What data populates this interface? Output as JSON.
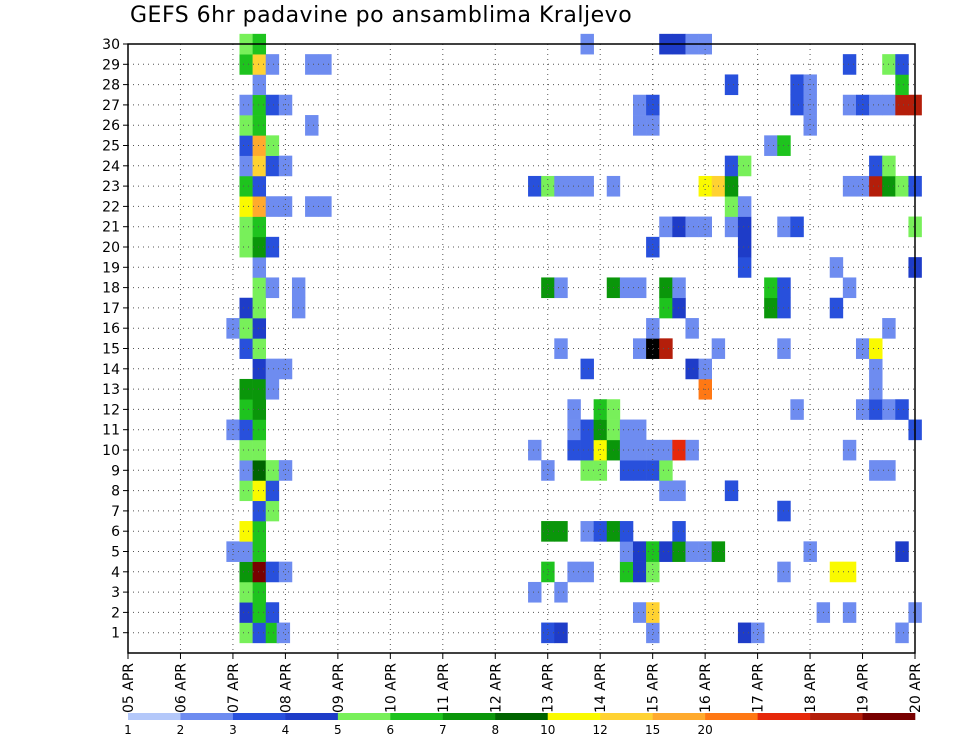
{
  "chart_data": {
    "type": "heatmap",
    "title": "GEFS 6hr padavine po ansamblima Kraljevo",
    "xlabel": "",
    "ylabel": "",
    "x_tick_labels": [
      "05 APR",
      "06 APR",
      "07 APR",
      "08 APR",
      "09 APR",
      "10 APR",
      "11 APR",
      "12 APR",
      "13 APR",
      "14 APR",
      "15 APR",
      "16 APR",
      "17 APR",
      "18 APR",
      "19 APR",
      "20 APR"
    ],
    "y_tick_labels": [
      "1",
      "2",
      "3",
      "4",
      "5",
      "6",
      "7",
      "8",
      "9",
      "10",
      "11",
      "12",
      "13",
      "14",
      "15",
      "16",
      "17",
      "18",
      "19",
      "20",
      "21",
      "22",
      "23",
      "24",
      "25",
      "26",
      "27",
      "28",
      "29",
      "30"
    ],
    "xlim": [
      "05 APR 00Z",
      "20 APR 00Z"
    ],
    "ylim": [
      0,
      30
    ],
    "x_step_hours": 6,
    "grid": true,
    "colorbar": {
      "colors": [
        "#b4c8fa",
        "#6e8cf0",
        "#2850dc",
        "#1e3cc8",
        "#78f05a",
        "#1ec31e",
        "#0a960a",
        "#006400",
        "#fafa00",
        "#ffd232",
        "#ffaa2d",
        "#ff7814",
        "#e6280a",
        "#b41e0a",
        "#780000"
      ],
      "labels": [
        "1",
        "2",
        "3",
        "4",
        "5",
        "6",
        "7",
        "8",
        "10",
        "12",
        "15",
        "20"
      ],
      "label_bins": [
        0,
        1,
        2,
        3,
        4,
        5,
        6,
        7,
        8,
        9,
        10,
        11
      ]
    },
    "cells": [
      [
        1,
        "07 APR 06Z",
        4
      ],
      [
        1,
        "07 APR 12Z",
        2
      ],
      [
        1,
        "07 APR 18Z",
        5
      ],
      [
        1,
        "07 APR 23Z",
        1
      ],
      [
        1,
        "13 APR 00Z",
        2
      ],
      [
        1,
        "13 APR 06Z",
        3
      ],
      [
        1,
        "15 APR 00Z",
        1
      ],
      [
        1,
        "16 APR 18Z",
        3
      ],
      [
        1,
        "17 APR 00Z",
        1
      ],
      [
        1,
        "19 APR 18Z",
        1
      ],
      [
        2,
        "07 APR 06Z",
        3
      ],
      [
        2,
        "07 APR 12Z",
        5
      ],
      [
        2,
        "07 APR 18Z",
        2
      ],
      [
        2,
        "14 APR 18Z",
        1
      ],
      [
        2,
        "15 APR 00Z",
        9
      ],
      [
        2,
        "18 APR 06Z",
        1
      ],
      [
        2,
        "18 APR 18Z",
        1
      ],
      [
        2,
        "20 APR 00Z",
        1
      ],
      [
        3,
        "07 APR 06Z",
        4
      ],
      [
        3,
        "07 APR 12Z",
        5
      ],
      [
        3,
        "12 APR 18Z",
        1
      ],
      [
        3,
        "13 APR 06Z",
        1
      ],
      [
        4,
        "07 APR 06Z",
        6
      ],
      [
        4,
        "07 APR 12Z",
        14
      ],
      [
        4,
        "07 APR 18Z",
        2
      ],
      [
        4,
        "08 APR 00Z",
        1
      ],
      [
        4,
        "13 APR 00Z",
        5
      ],
      [
        4,
        "13 APR 12Z",
        1
      ],
      [
        4,
        "13 APR 18Z",
        1
      ],
      [
        4,
        "14 APR 12Z",
        5
      ],
      [
        4,
        "14 APR 18Z",
        3
      ],
      [
        4,
        "15 APR 00Z",
        4
      ],
      [
        4,
        "17 APR 12Z",
        1
      ],
      [
        4,
        "18 APR 12Z",
        8
      ],
      [
        4,
        "18 APR 18Z",
        8
      ],
      [
        5,
        "07 APR 00Z",
        1
      ],
      [
        5,
        "07 APR 06Z",
        1
      ],
      [
        5,
        "07 APR 12Z",
        5
      ],
      [
        5,
        "14 APR 12Z",
        1
      ],
      [
        5,
        "14 APR 18Z",
        3
      ],
      [
        5,
        "15 APR 00Z",
        5
      ],
      [
        5,
        "15 APR 06Z",
        3
      ],
      [
        5,
        "15 APR 12Z",
        6
      ],
      [
        5,
        "15 APR 18Z",
        1
      ],
      [
        5,
        "16 APR 00Z",
        1
      ],
      [
        5,
        "16 APR 06Z",
        6
      ],
      [
        5,
        "18 APR 00Z",
        1
      ],
      [
        5,
        "19 APR 18Z",
        3
      ],
      [
        6,
        "07 APR 06Z",
        8
      ],
      [
        6,
        "07 APR 12Z",
        5
      ],
      [
        6,
        "13 APR 00Z",
        6
      ],
      [
        6,
        "13 APR 06Z",
        6
      ],
      [
        6,
        "13 APR 18Z",
        1
      ],
      [
        6,
        "14 APR 00Z",
        2
      ],
      [
        6,
        "14 APR 06Z",
        6
      ],
      [
        6,
        "14 APR 12Z",
        2
      ],
      [
        6,
        "15 APR 12Z",
        2
      ],
      [
        7,
        "07 APR 12Z",
        2
      ],
      [
        7,
        "07 APR 18Z",
        4
      ],
      [
        7,
        "17 APR 12Z",
        2
      ],
      [
        8,
        "07 APR 06Z",
        4
      ],
      [
        8,
        "07 APR 12Z",
        8
      ],
      [
        8,
        "07 APR 18Z",
        2
      ],
      [
        8,
        "15 APR 06Z",
        1
      ],
      [
        8,
        "15 APR 12Z",
        1
      ],
      [
        8,
        "16 APR 12Z",
        2
      ],
      [
        9,
        "07 APR 06Z",
        1
      ],
      [
        9,
        "07 APR 12Z",
        7
      ],
      [
        9,
        "07 APR 18Z",
        4
      ],
      [
        9,
        "08 APR 00Z",
        1
      ],
      [
        9,
        "13 APR 00Z",
        1
      ],
      [
        9,
        "13 APR 18Z",
        4
      ],
      [
        9,
        "14 APR 00Z",
        4
      ],
      [
        9,
        "14 APR 12Z",
        2
      ],
      [
        9,
        "14 APR 18Z",
        2
      ],
      [
        9,
        "15 APR 00Z",
        2
      ],
      [
        9,
        "15 APR 06Z",
        4
      ],
      [
        9,
        "19 APR 06Z",
        1
      ],
      [
        9,
        "19 APR 12Z",
        1
      ],
      [
        10,
        "07 APR 06Z",
        4
      ],
      [
        10,
        "07 APR 12Z",
        4
      ],
      [
        10,
        "12 APR 18Z",
        1
      ],
      [
        10,
        "13 APR 12Z",
        2
      ],
      [
        10,
        "13 APR 18Z",
        2
      ],
      [
        10,
        "14 APR 00Z",
        8
      ],
      [
        10,
        "14 APR 06Z",
        6
      ],
      [
        10,
        "14 APR 12Z",
        1
      ],
      [
        10,
        "14 APR 18Z",
        1
      ],
      [
        10,
        "15 APR 00Z",
        1
      ],
      [
        10,
        "15 APR 06Z",
        1
      ],
      [
        10,
        "15 APR 12Z",
        12
      ],
      [
        10,
        "15 APR 18Z",
        1
      ],
      [
        10,
        "18 APR 18Z",
        1
      ],
      [
        11,
        "07 APR 00Z",
        1
      ],
      [
        11,
        "07 APR 06Z",
        2
      ],
      [
        11,
        "07 APR 12Z",
        5
      ],
      [
        11,
        "13 APR 12Z",
        1
      ],
      [
        11,
        "13 APR 18Z",
        2
      ],
      [
        11,
        "14 APR 00Z",
        6
      ],
      [
        11,
        "14 APR 06Z",
        4
      ],
      [
        11,
        "14 APR 12Z",
        1
      ],
      [
        11,
        "14 APR 18Z",
        1
      ],
      [
        11,
        "20 APR 00Z",
        2
      ],
      [
        12,
        "07 APR 06Z",
        5
      ],
      [
        12,
        "07 APR 12Z",
        6
      ],
      [
        12,
        "13 APR 12Z",
        1
      ],
      [
        12,
        "14 APR 00Z",
        5
      ],
      [
        12,
        "14 APR 06Z",
        4
      ],
      [
        12,
        "17 APR 18Z",
        1
      ],
      [
        12,
        "19 APR 00Z",
        1
      ],
      [
        12,
        "19 APR 06Z",
        2
      ],
      [
        12,
        "19 APR 12Z",
        1
      ],
      [
        12,
        "19 APR 18Z",
        2
      ],
      [
        13,
        "07 APR 06Z",
        6
      ],
      [
        13,
        "07 APR 12Z",
        6
      ],
      [
        13,
        "07 APR 18Z",
        1
      ],
      [
        13,
        "16 APR 00Z",
        11
      ],
      [
        13,
        "19 APR 06Z",
        1
      ],
      [
        14,
        "07 APR 12Z",
        3
      ],
      [
        14,
        "07 APR 18Z",
        1
      ],
      [
        14,
        "08 APR 00Z",
        1
      ],
      [
        14,
        "13 APR 18Z",
        2
      ],
      [
        14,
        "15 APR 18Z",
        3
      ],
      [
        14,
        "16 APR 00Z",
        1
      ],
      [
        14,
        "19 APR 06Z",
        1
      ],
      [
        15,
        "07 APR 06Z",
        2
      ],
      [
        15,
        "07 APR 12Z",
        4
      ],
      [
        15,
        "13 APR 06Z",
        1
      ],
      [
        15,
        "14 APR 18Z",
        1
      ],
      [
        15,
        "15 APR 00Z",
        15
      ],
      [
        15,
        "15 APR 06Z",
        13
      ],
      [
        15,
        "16 APR 06Z",
        1
      ],
      [
        15,
        "17 APR 12Z",
        1
      ],
      [
        15,
        "19 APR 00Z",
        1
      ],
      [
        15,
        "19 APR 06Z",
        8
      ],
      [
        16,
        "07 APR 00Z",
        1
      ],
      [
        16,
        "07 APR 06Z",
        4
      ],
      [
        16,
        "07 APR 12Z",
        3
      ],
      [
        16,
        "15 APR 00Z",
        1
      ],
      [
        16,
        "15 APR 18Z",
        1
      ],
      [
        16,
        "19 APR 12Z",
        1
      ],
      [
        17,
        "07 APR 06Z",
        3
      ],
      [
        17,
        "07 APR 12Z",
        4
      ],
      [
        17,
        "08 APR 06Z",
        1
      ],
      [
        17,
        "15 APR 06Z",
        5
      ],
      [
        17,
        "15 APR 12Z",
        3
      ],
      [
        17,
        "17 APR 06Z",
        6
      ],
      [
        17,
        "17 APR 12Z",
        2
      ],
      [
        17,
        "18 APR 12Z",
        2
      ],
      [
        18,
        "07 APR 12Z",
        4
      ],
      [
        18,
        "07 APR 18Z",
        1
      ],
      [
        18,
        "08 APR 06Z",
        1
      ],
      [
        18,
        "13 APR 00Z",
        6
      ],
      [
        18,
        "13 APR 06Z",
        1
      ],
      [
        18,
        "14 APR 06Z",
        6
      ],
      [
        18,
        "14 APR 12Z",
        1
      ],
      [
        18,
        "14 APR 18Z",
        1
      ],
      [
        18,
        "15 APR 06Z",
        6
      ],
      [
        18,
        "15 APR 12Z",
        1
      ],
      [
        18,
        "17 APR 06Z",
        5
      ],
      [
        18,
        "17 APR 12Z",
        2
      ],
      [
        18,
        "18 APR 18Z",
        1
      ],
      [
        19,
        "07 APR 12Z",
        1
      ],
      [
        19,
        "16 APR 18Z",
        2
      ],
      [
        19,
        "18 APR 12Z",
        1
      ],
      [
        19,
        "20 APR 00Z",
        3
      ],
      [
        20,
        "07 APR 06Z",
        4
      ],
      [
        20,
        "07 APR 12Z",
        6
      ],
      [
        20,
        "07 APR 18Z",
        2
      ],
      [
        20,
        "15 APR 00Z",
        2
      ],
      [
        20,
        "16 APR 18Z",
        3
      ],
      [
        21,
        "07 APR 06Z",
        4
      ],
      [
        21,
        "07 APR 12Z",
        5
      ],
      [
        21,
        "15 APR 06Z",
        1
      ],
      [
        21,
        "15 APR 12Z",
        3
      ],
      [
        21,
        "15 APR 18Z",
        1
      ],
      [
        21,
        "16 APR 00Z",
        1
      ],
      [
        21,
        "16 APR 12Z",
        1
      ],
      [
        21,
        "16 APR 18Z",
        3
      ],
      [
        21,
        "17 APR 12Z",
        1
      ],
      [
        21,
        "17 APR 18Z",
        2
      ],
      [
        21,
        "20 APR 00Z",
        4
      ],
      [
        22,
        "07 APR 06Z",
        8
      ],
      [
        22,
        "07 APR 12Z",
        10
      ],
      [
        22,
        "07 APR 18Z",
        1
      ],
      [
        22,
        "08 APR 00Z",
        1
      ],
      [
        22,
        "08 APR 12Z",
        1
      ],
      [
        22,
        "08 APR 18Z",
        1
      ],
      [
        22,
        "16 APR 12Z",
        4
      ],
      [
        22,
        "16 APR 18Z",
        1
      ],
      [
        23,
        "07 APR 06Z",
        5
      ],
      [
        23,
        "07 APR 12Z",
        2
      ],
      [
        23,
        "12 APR 18Z",
        2
      ],
      [
        23,
        "13 APR 00Z",
        4
      ],
      [
        23,
        "13 APR 06Z",
        1
      ],
      [
        23,
        "13 APR 12Z",
        1
      ],
      [
        23,
        "13 APR 18Z",
        1
      ],
      [
        23,
        "14 APR 06Z",
        1
      ],
      [
        23,
        "16 APR 00Z",
        8
      ],
      [
        23,
        "16 APR 06Z",
        9
      ],
      [
        23,
        "16 APR 12Z",
        6
      ],
      [
        23,
        "18 APR 18Z",
        1
      ],
      [
        23,
        "19 APR 00Z",
        1
      ],
      [
        23,
        "19 APR 06Z",
        13
      ],
      [
        23,
        "19 APR 12Z",
        6
      ],
      [
        23,
        "19 APR 18Z",
        4
      ],
      [
        23,
        "20 APR 00Z",
        2
      ],
      [
        24,
        "07 APR 06Z",
        1
      ],
      [
        24,
        "07 APR 12Z",
        9
      ],
      [
        24,
        "07 APR 18Z",
        2
      ],
      [
        24,
        "08 APR 00Z",
        1
      ],
      [
        24,
        "16 APR 12Z",
        2
      ],
      [
        24,
        "16 APR 18Z",
        4
      ],
      [
        24,
        "19 APR 06Z",
        2
      ],
      [
        24,
        "19 APR 12Z",
        4
      ],
      [
        25,
        "07 APR 06Z",
        2
      ],
      [
        25,
        "07 APR 12Z",
        10
      ],
      [
        25,
        "07 APR 18Z",
        4
      ],
      [
        25,
        "17 APR 06Z",
        1
      ],
      [
        25,
        "17 APR 12Z",
        5
      ],
      [
        26,
        "07 APR 06Z",
        4
      ],
      [
        26,
        "07 APR 12Z",
        5
      ],
      [
        26,
        "08 APR 12Z",
        1
      ],
      [
        26,
        "14 APR 18Z",
        1
      ],
      [
        26,
        "15 APR 00Z",
        1
      ],
      [
        26,
        "18 APR 00Z",
        1
      ],
      [
        27,
        "07 APR 06Z",
        1
      ],
      [
        27,
        "07 APR 12Z",
        5
      ],
      [
        27,
        "07 APR 18Z",
        2
      ],
      [
        27,
        "08 APR 00Z",
        1
      ],
      [
        27,
        "14 APR 18Z",
        1
      ],
      [
        27,
        "15 APR 00Z",
        2
      ],
      [
        27,
        "17 APR 18Z",
        2
      ],
      [
        27,
        "18 APR 00Z",
        1
      ],
      [
        27,
        "18 APR 18Z",
        1
      ],
      [
        27,
        "19 APR 00Z",
        2
      ],
      [
        27,
        "19 APR 06Z",
        1
      ],
      [
        27,
        "19 APR 12Z",
        1
      ],
      [
        27,
        "19 APR 18Z",
        13
      ],
      [
        27,
        "20 APR 00Z",
        13
      ],
      [
        28,
        "07 APR 12Z",
        1
      ],
      [
        28,
        "16 APR 12Z",
        2
      ],
      [
        28,
        "17 APR 18Z",
        2
      ],
      [
        28,
        "18 APR 00Z",
        1
      ],
      [
        28,
        "19 APR 18Z",
        5
      ],
      [
        29,
        "07 APR 06Z",
        5
      ],
      [
        29,
        "07 APR 12Z",
        9
      ],
      [
        29,
        "07 APR 18Z",
        1
      ],
      [
        29,
        "08 APR 12Z",
        1
      ],
      [
        29,
        "08 APR 18Z",
        1
      ],
      [
        29,
        "18 APR 18Z",
        2
      ],
      [
        29,
        "19 APR 12Z",
        4
      ],
      [
        29,
        "19 APR 18Z",
        2
      ],
      [
        30,
        "07 APR 06Z",
        4
      ],
      [
        30,
        "07 APR 12Z",
        5
      ],
      [
        30,
        "13 APR 18Z",
        1
      ],
      [
        30,
        "15 APR 06Z",
        3
      ],
      [
        30,
        "15 APR 12Z",
        3
      ],
      [
        30,
        "15 APR 18Z",
        1
      ],
      [
        30,
        "16 APR 00Z",
        1
      ]
    ]
  }
}
